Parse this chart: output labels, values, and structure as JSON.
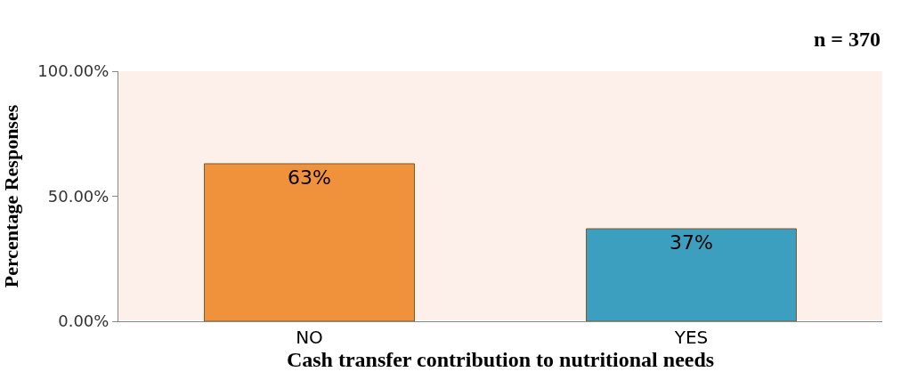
{
  "chart_data": {
    "type": "bar",
    "xlabel": "Cash transfer contribution to nutritional needs",
    "ylabel": "Percentage Responses",
    "annotations": [
      "n = 370"
    ],
    "categories": [
      "NO",
      "YES"
    ],
    "values": [
      63,
      37
    ],
    "colors": [
      "#f0923c",
      "#3d9fbf"
    ],
    "value_labels": [
      "63%",
      "37%"
    ],
    "ylim": [
      0,
      100
    ],
    "yticks": [
      {
        "value": 0,
        "label": "0.00%"
      },
      {
        "value": 50,
        "label": "50.00%"
      },
      {
        "value": 100,
        "label": "100.00%"
      }
    ],
    "grid": false
  }
}
